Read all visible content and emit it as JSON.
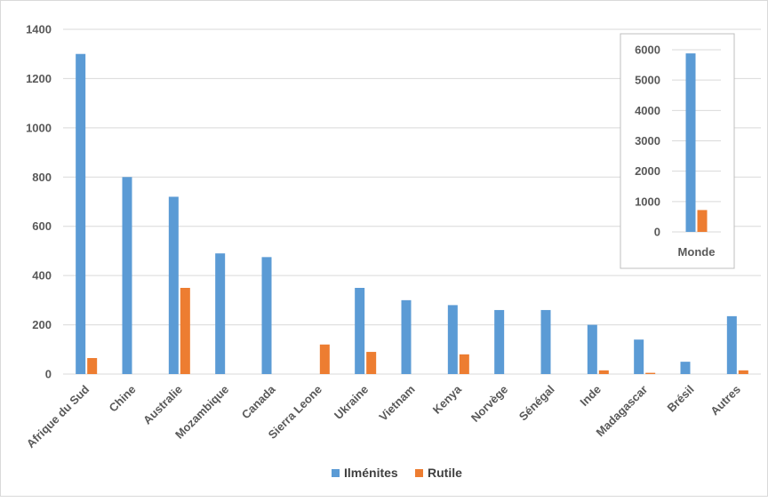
{
  "chart_data": [
    {
      "type": "bar",
      "title": "",
      "xlabel": "",
      "ylabel": "",
      "ylim": [
        0,
        1400
      ],
      "yticks": [
        0,
        200,
        400,
        600,
        800,
        1000,
        1200,
        1400
      ],
      "grid": true,
      "legend": "bottom",
      "categories": [
        "Afrique du Sud",
        "Chine",
        "Australie",
        "Mozambique",
        "Canada",
        "Sierra Leone",
        "Ukraine",
        "Vietnam",
        "Kenya",
        "Norvège",
        "Sénégal",
        "Inde",
        "Madagascar",
        "Brésil",
        "Autres"
      ],
      "series": [
        {
          "name": "Ilménites",
          "color": "#5b9bd5",
          "values": [
            1300,
            800,
            720,
            490,
            475,
            0,
            350,
            300,
            280,
            260,
            260,
            200,
            140,
            50,
            235
          ]
        },
        {
          "name": "Rutile",
          "color": "#ed7d31",
          "values": [
            65,
            0,
            350,
            0,
            0,
            120,
            90,
            0,
            80,
            0,
            0,
            15,
            5,
            0,
            15
          ]
        }
      ]
    },
    {
      "type": "bar",
      "title": "",
      "ylim": [
        0,
        6000
      ],
      "yticks": [
        0,
        1000,
        2000,
        3000,
        4000,
        5000,
        6000
      ],
      "grid": true,
      "categories": [
        "Monde"
      ],
      "series": [
        {
          "name": "Ilménites",
          "color": "#5b9bd5",
          "values": [
            5880
          ]
        },
        {
          "name": "Rutile",
          "color": "#ed7d31",
          "values": [
            720
          ]
        }
      ]
    }
  ]
}
